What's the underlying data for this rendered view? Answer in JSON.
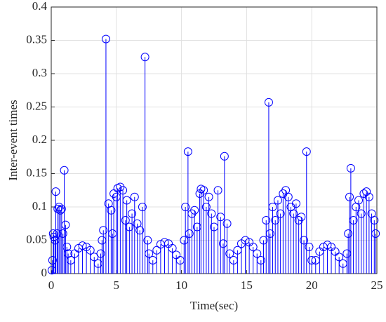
{
  "chart_data": {
    "type": "stem",
    "xlabel": "Time(sec)",
    "ylabel": "Inter-event times",
    "color": "#0000ff",
    "grid": true,
    "xlim": [
      0,
      25
    ],
    "xticks": [
      0,
      5,
      10,
      15,
      20,
      25
    ],
    "ylim": [
      0,
      0.4
    ],
    "yticks": [
      0,
      0.05,
      0.1,
      0.15,
      0.2,
      0.25,
      0.3,
      0.35,
      0.4
    ],
    "x": [
      0.05,
      0.1,
      0.15,
      0.2,
      0.3,
      0.35,
      0.45,
      0.5,
      0.6,
      0.7,
      0.8,
      0.9,
      1.0,
      1.1,
      1.2,
      1.3,
      1.5,
      1.8,
      2.1,
      2.4,
      2.7,
      3.0,
      3.3,
      3.6,
      3.8,
      3.9,
      4.0,
      4.2,
      4.4,
      4.6,
      4.7,
      4.8,
      5.0,
      5.1,
      5.3,
      5.5,
      5.7,
      5.8,
      6.0,
      6.2,
      6.4,
      6.6,
      6.8,
      7.0,
      7.2,
      7.4,
      7.5,
      7.8,
      8.1,
      8.4,
      8.7,
      9.0,
      9.3,
      9.6,
      9.9,
      10.2,
      10.3,
      10.5,
      10.6,
      10.8,
      11.0,
      11.2,
      11.4,
      11.5,
      11.7,
      11.9,
      12.1,
      12.3,
      12.5,
      12.8,
      13.0,
      13.2,
      13.3,
      13.5,
      13.7,
      14.0,
      14.3,
      14.6,
      14.9,
      15.2,
      15.5,
      15.8,
      16.1,
      16.3,
      16.5,
      16.7,
      16.8,
      17.0,
      17.2,
      17.4,
      17.6,
      17.8,
      18.0,
      18.2,
      18.4,
      18.6,
      18.8,
      19.0,
      19.2,
      19.4,
      19.6,
      19.8,
      20.0,
      20.3,
      20.6,
      20.9,
      21.2,
      21.5,
      21.8,
      22.1,
      22.4,
      22.7,
      22.8,
      22.9,
      23.0,
      23.2,
      23.4,
      23.6,
      23.8,
      24.0,
      24.2,
      24.4,
      24.6,
      24.8,
      24.9
    ],
    "values": [
      0.005,
      0.02,
      0.06,
      0.055,
      0.05,
      0.123,
      0.06,
      0.097,
      0.1,
      0.095,
      0.097,
      0.06,
      0.155,
      0.073,
      0.04,
      0.03,
      0.02,
      0.03,
      0.038,
      0.042,
      0.04,
      0.035,
      0.025,
      0.015,
      0.03,
      0.05,
      0.065,
      0.352,
      0.105,
      0.095,
      0.06,
      0.12,
      0.115,
      0.128,
      0.13,
      0.125,
      0.08,
      0.11,
      0.07,
      0.09,
      0.115,
      0.075,
      0.065,
      0.1,
      0.325,
      0.05,
      0.03,
      0.02,
      0.035,
      0.044,
      0.047,
      0.045,
      0.038,
      0.028,
      0.02,
      0.05,
      0.1,
      0.183,
      0.06,
      0.09,
      0.095,
      0.07,
      0.12,
      0.127,
      0.125,
      0.1,
      0.115,
      0.09,
      0.07,
      0.125,
      0.085,
      0.045,
      0.176,
      0.075,
      0.03,
      0.02,
      0.035,
      0.045,
      0.05,
      0.047,
      0.04,
      0.03,
      0.02,
      0.05,
      0.08,
      0.257,
      0.06,
      0.1,
      0.08,
      0.11,
      0.09,
      0.12,
      0.125,
      0.115,
      0.1,
      0.09,
      0.105,
      0.08,
      0.085,
      0.05,
      0.183,
      0.04,
      0.02,
      0.02,
      0.033,
      0.04,
      0.043,
      0.04,
      0.033,
      0.025,
      0.015,
      0.03,
      0.06,
      0.115,
      0.158,
      0.08,
      0.1,
      0.11,
      0.09,
      0.12,
      0.123,
      0.115,
      0.09,
      0.08,
      0.06
    ]
  }
}
